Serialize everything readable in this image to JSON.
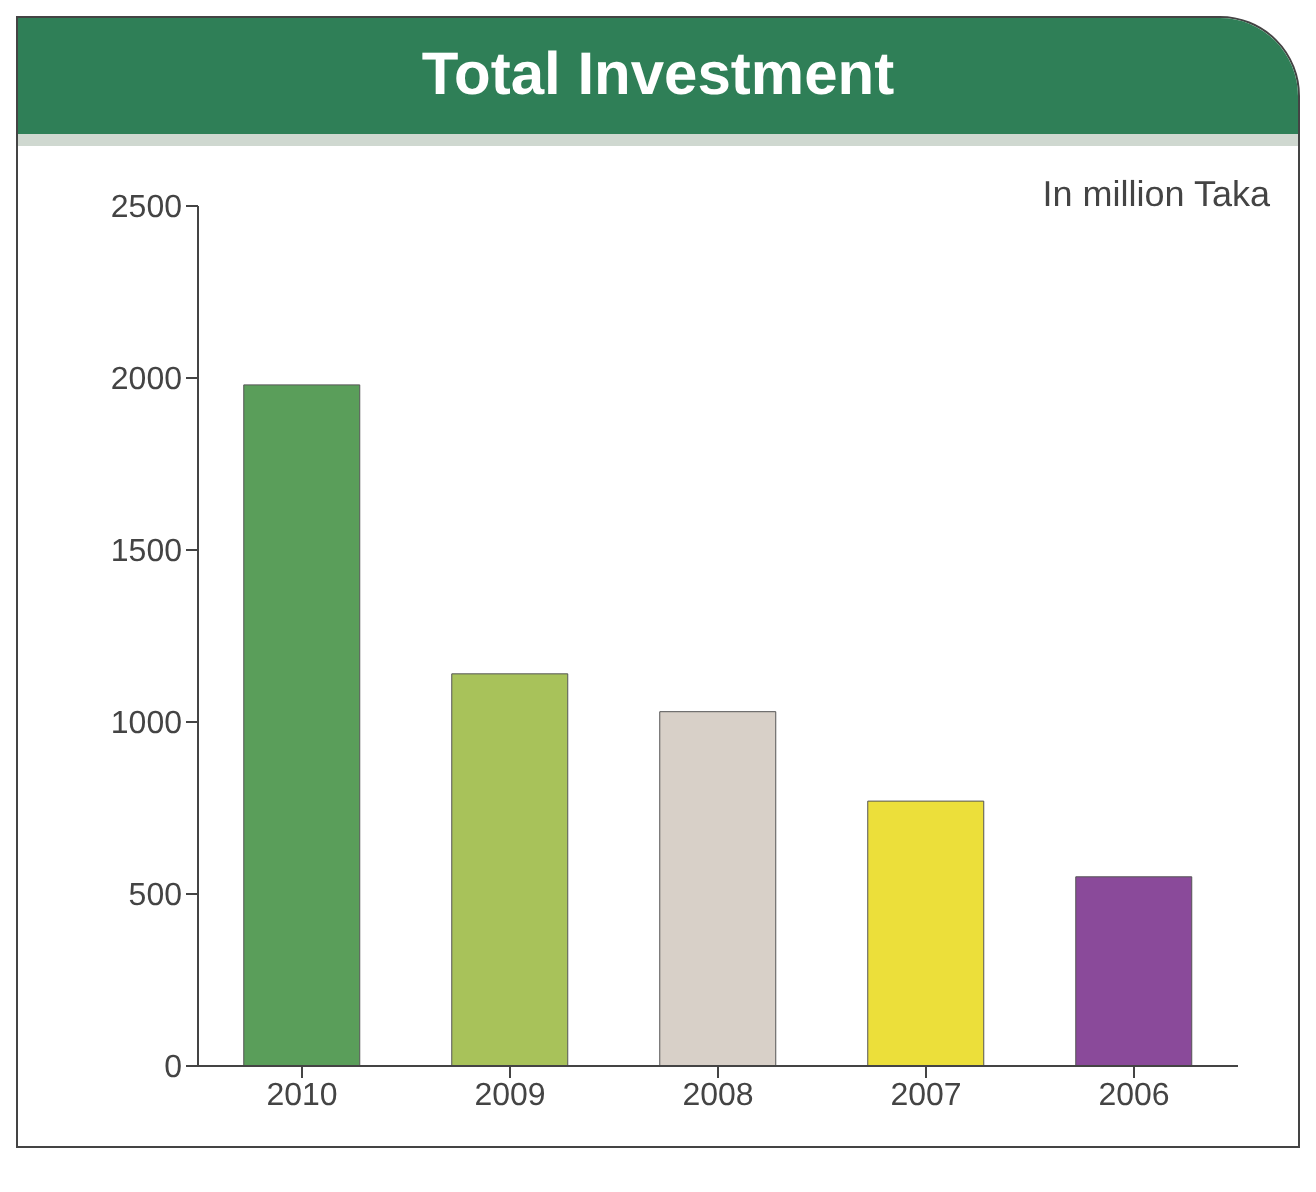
{
  "chart_data": {
    "type": "bar",
    "title": "Total Investment",
    "annotations": [
      "In million Taka"
    ],
    "categories": [
      "2010",
      "2009",
      "2008",
      "2007",
      "2006"
    ],
    "values": [
      1980,
      1140,
      1030,
      770,
      550
    ],
    "colors": [
      "#5a9e5a",
      "#a8c25a",
      "#d8d0c8",
      "#ecdf3a",
      "#8a4a9a"
    ],
    "ylim": [
      0,
      2500
    ],
    "yticks": [
      0,
      500,
      1000,
      1500,
      2000,
      2500
    ],
    "grid": false,
    "legend": false
  }
}
